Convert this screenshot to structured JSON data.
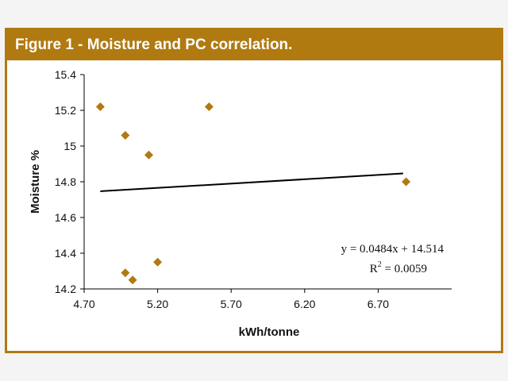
{
  "figure": {
    "title": "Figure 1 - Moisture and PC correlation."
  },
  "chart_data": {
    "type": "scatter",
    "title": "Figure 1 - Moisture and PC correlation.",
    "xlabel": "kWh/tonne",
    "ylabel": "Moisture %",
    "xlim": [
      4.7,
      7.2
    ],
    "ylim": [
      14.2,
      15.4
    ],
    "x_ticks": [
      "4.70",
      "5.20",
      "5.70",
      "6.20",
      "6.70"
    ],
    "y_ticks": [
      "14.2",
      "14.4",
      "14.6",
      "14.8",
      "15",
      "15.2",
      "15.4"
    ],
    "points": [
      {
        "x": 4.81,
        "y": 15.22
      },
      {
        "x": 4.98,
        "y": 15.06
      },
      {
        "x": 5.14,
        "y": 14.95
      },
      {
        "x": 5.55,
        "y": 15.22
      },
      {
        "x": 4.98,
        "y": 14.29
      },
      {
        "x": 5.03,
        "y": 14.25
      },
      {
        "x": 5.2,
        "y": 14.35
      },
      {
        "x": 6.89,
        "y": 14.8
      }
    ],
    "trendline": {
      "slope": 0.0484,
      "intercept": 14.514,
      "x_range": [
        4.81,
        6.87
      ],
      "equation": "y = 0.0484x + 14.514",
      "r2_prefix": "R",
      "r2_sup": "2",
      "r2_value": " = 0.0059"
    },
    "marker_color": "#b07a10",
    "line_color": "#000000",
    "grid": false
  }
}
